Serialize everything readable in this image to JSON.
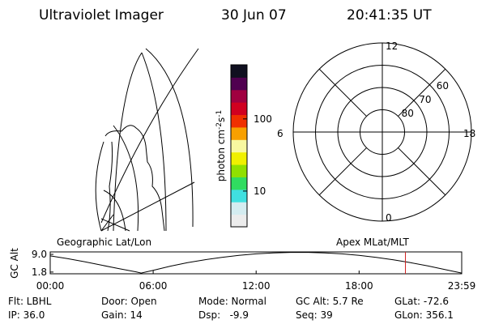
{
  "header": {
    "title": "Ultraviolet Imager",
    "date": "30 Jun 07",
    "time": "20:41:35 UT"
  },
  "map": {
    "label": "Geographic Lat/Lon"
  },
  "colorbar": {
    "unit": [
      "photon cm",
      "-2",
      "s",
      "-1"
    ],
    "log": true,
    "clim": [
      3.2,
      562
    ],
    "ticks": [
      100,
      10
    ],
    "colors": [
      "#ececec",
      "#d4ecf0",
      "#40e0e0",
      "#30dc60",
      "#90e000",
      "#f0f000",
      "#f8f8a0",
      "#f8a000",
      "#f03000",
      "#d00020",
      "#a00040",
      "#500050",
      "#101020"
    ]
  },
  "polar": {
    "label": "Apex MLat/MLT",
    "boundary": 50,
    "rings": [
      80,
      70,
      60
    ],
    "mlt_labels": [
      {
        "value": 12,
        "label": "12"
      },
      {
        "value": 18,
        "label": "18"
      },
      {
        "value": 6,
        "label": "6"
      },
      {
        "value": 0,
        "label": "0"
      }
    ]
  },
  "altitude": {
    "ylabel": "GC Alt",
    "ylim": [
      1.1,
      10.0
    ],
    "yticks": [
      {
        "value": 9.0,
        "label": "9.0"
      },
      {
        "value": 1.8,
        "label": "1.8"
      }
    ],
    "xlim": [
      0,
      23.98
    ],
    "xticks": [
      {
        "value": 0,
        "label": "00:00"
      },
      {
        "value": 6,
        "label": "06:00"
      },
      {
        "value": 12,
        "label": "12:00"
      },
      {
        "value": 18,
        "label": "18:00"
      },
      {
        "value": 23.98,
        "label": "23:59"
      }
    ],
    "x": [
      0,
      1,
      2,
      3,
      4,
      5,
      5.3,
      6,
      7,
      8,
      9,
      10,
      11,
      12,
      13,
      14,
      15,
      16,
      17,
      18,
      19,
      20,
      21,
      22,
      23,
      23.98
    ],
    "values": [
      8.4,
      7.3,
      6.0,
      4.6,
      3.2,
      1.9,
      1.4,
      2.5,
      4.2,
      5.6,
      6.8,
      7.8,
      8.6,
      9.2,
      9.6,
      9.8,
      9.8,
      9.6,
      9.2,
      8.6,
      7.8,
      6.8,
      5.6,
      4.3,
      2.8,
      1.4
    ],
    "current_time": 20.7,
    "current_color": "#d02020"
  },
  "footer": {
    "rows": [
      [
        "Flt: LBHL",
        "Door: Open",
        "Mode: Normal",
        "GC Alt: 5.7 Re",
        "GLat: -72.6"
      ],
      [
        "IP: 36.0",
        "Gain: 14",
        "Dsp:   -9.9",
        "Seq: 39",
        "GLon: 356.1"
      ]
    ]
  }
}
